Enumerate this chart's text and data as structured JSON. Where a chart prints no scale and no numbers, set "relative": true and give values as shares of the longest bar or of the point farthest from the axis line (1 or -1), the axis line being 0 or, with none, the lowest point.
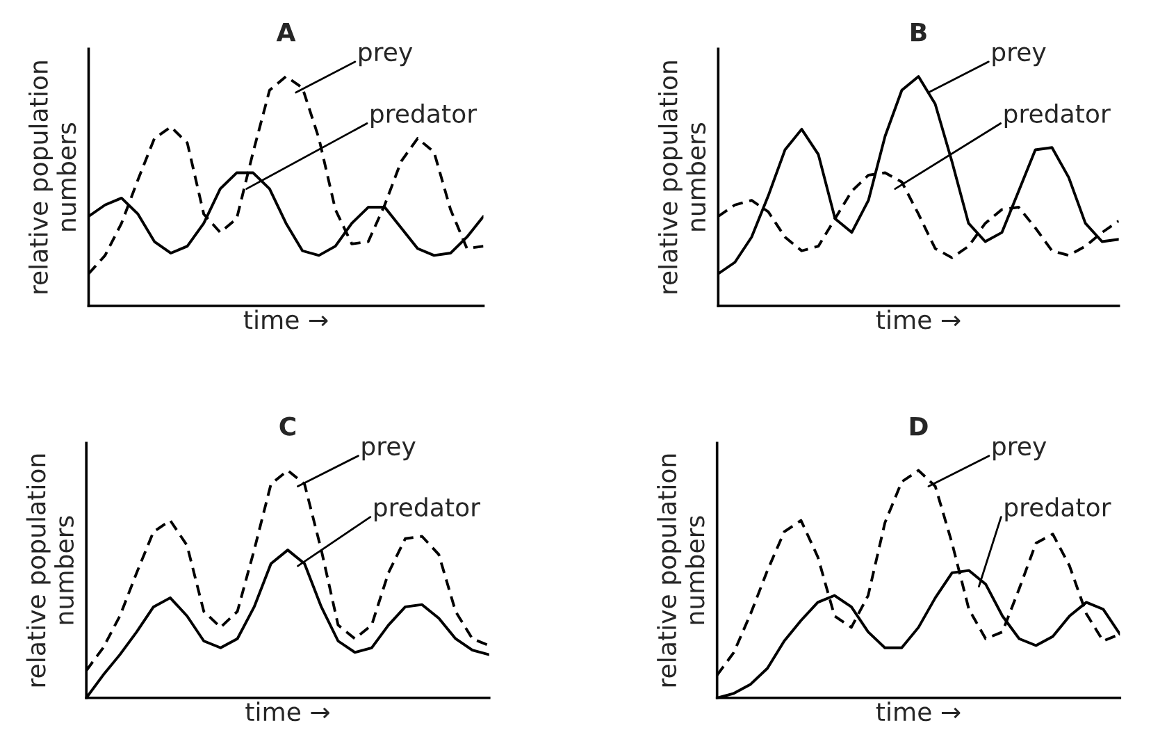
{
  "chart_data": [
    {
      "type": "line",
      "title": "A",
      "xlabel": "time →",
      "ylabel": "relative population\nnumbers",
      "relative": true,
      "tick_labels": false,
      "legend": false,
      "grid": false,
      "categories": [
        null,
        null,
        null,
        null,
        null,
        null,
        null,
        null,
        null,
        null,
        null,
        null,
        null,
        null,
        null,
        null,
        null,
        null,
        null,
        null,
        null,
        null,
        null,
        null,
        null
      ],
      "series": [
        {
          "name": "prey",
          "color": "#000000",
          "line_style": "dashed",
          "values": [
            0.14,
            0.22,
            0.36,
            0.55,
            0.73,
            0.78,
            0.71,
            0.4,
            0.32,
            0.38,
            0.67,
            0.94,
            1.0,
            0.95,
            0.73,
            0.42,
            0.27,
            0.28,
            0.44,
            0.63,
            0.73,
            0.67,
            0.42,
            0.25,
            0.26
          ]
        },
        {
          "name": "predator",
          "color": "#000000",
          "line_style": "solid",
          "values": [
            0.39,
            0.44,
            0.47,
            0.4,
            0.28,
            0.23,
            0.26,
            0.36,
            0.51,
            0.58,
            0.58,
            0.51,
            0.36,
            0.24,
            0.22,
            0.26,
            0.36,
            0.43,
            0.43,
            0.34,
            0.25,
            0.22,
            0.23,
            0.3,
            0.39
          ]
        }
      ]
    },
    {
      "type": "line",
      "title": "B",
      "xlabel": "time →",
      "ylabel": "relative population\nnumbers",
      "relative": true,
      "tick_labels": false,
      "legend": false,
      "grid": false,
      "categories": [
        null,
        null,
        null,
        null,
        null,
        null,
        null,
        null,
        null,
        null,
        null,
        null,
        null,
        null,
        null,
        null,
        null,
        null,
        null,
        null,
        null,
        null,
        null,
        null,
        null
      ],
      "series": [
        {
          "name": "prey",
          "color": "#000000",
          "line_style": "solid",
          "values": [
            0.14,
            0.19,
            0.3,
            0.48,
            0.68,
            0.77,
            0.66,
            0.38,
            0.32,
            0.46,
            0.74,
            0.94,
            1.0,
            0.88,
            0.63,
            0.36,
            0.28,
            0.32,
            0.5,
            0.68,
            0.69,
            0.56,
            0.36,
            0.28,
            0.29
          ]
        },
        {
          "name": "predator",
          "color": "#000000",
          "line_style": "dashed",
          "values": [
            0.39,
            0.44,
            0.46,
            0.41,
            0.3,
            0.24,
            0.26,
            0.38,
            0.5,
            0.57,
            0.58,
            0.54,
            0.4,
            0.25,
            0.21,
            0.26,
            0.36,
            0.42,
            0.43,
            0.34,
            0.24,
            0.22,
            0.26,
            0.32,
            0.37
          ]
        }
      ]
    },
    {
      "type": "line",
      "title": "C",
      "xlabel": "time →",
      "ylabel": "relative population\nnumbers",
      "relative": true,
      "tick_labels": false,
      "legend": false,
      "grid": false,
      "categories": [
        null,
        null,
        null,
        null,
        null,
        null,
        null,
        null,
        null,
        null,
        null,
        null,
        null,
        null,
        null,
        null,
        null,
        null,
        null,
        null,
        null,
        null,
        null,
        null,
        null
      ],
      "series": [
        {
          "name": "prey",
          "color": "#000000",
          "line_style": "dashed",
          "values": [
            0.12,
            0.22,
            0.36,
            0.55,
            0.73,
            0.78,
            0.67,
            0.38,
            0.31,
            0.38,
            0.65,
            0.94,
            1.0,
            0.94,
            0.65,
            0.32,
            0.26,
            0.32,
            0.55,
            0.7,
            0.71,
            0.63,
            0.38,
            0.26,
            0.23
          ]
        },
        {
          "name": "predator",
          "color": "#000000",
          "line_style": "solid",
          "values": [
            0.0,
            0.1,
            0.19,
            0.29,
            0.4,
            0.44,
            0.36,
            0.25,
            0.22,
            0.26,
            0.4,
            0.59,
            0.65,
            0.59,
            0.4,
            0.25,
            0.2,
            0.22,
            0.32,
            0.4,
            0.41,
            0.35,
            0.26,
            0.21,
            0.19
          ]
        }
      ]
    },
    {
      "type": "line",
      "title": "D",
      "xlabel": "time →",
      "ylabel": "relative population\nnumbers",
      "relative": true,
      "tick_labels": false,
      "legend": false,
      "grid": false,
      "categories": [
        null,
        null,
        null,
        null,
        null,
        null,
        null,
        null,
        null,
        null,
        null,
        null,
        null,
        null,
        null,
        null,
        null,
        null,
        null,
        null,
        null,
        null,
        null,
        null,
        null
      ],
      "series": [
        {
          "name": "prey",
          "color": "#000000",
          "line_style": "dashed",
          "values": [
            0.1,
            0.2,
            0.37,
            0.56,
            0.73,
            0.78,
            0.62,
            0.36,
            0.31,
            0.45,
            0.77,
            0.95,
            1.0,
            0.93,
            0.68,
            0.39,
            0.26,
            0.29,
            0.48,
            0.68,
            0.72,
            0.58,
            0.37,
            0.25,
            0.28
          ]
        },
        {
          "name": "predator",
          "color": "#000000",
          "line_style": "solid",
          "values": [
            0.0,
            0.02,
            0.06,
            0.13,
            0.25,
            0.34,
            0.42,
            0.45,
            0.4,
            0.29,
            0.22,
            0.22,
            0.31,
            0.44,
            0.55,
            0.56,
            0.5,
            0.36,
            0.26,
            0.23,
            0.27,
            0.36,
            0.42,
            0.39,
            0.28
          ]
        }
      ]
    }
  ]
}
